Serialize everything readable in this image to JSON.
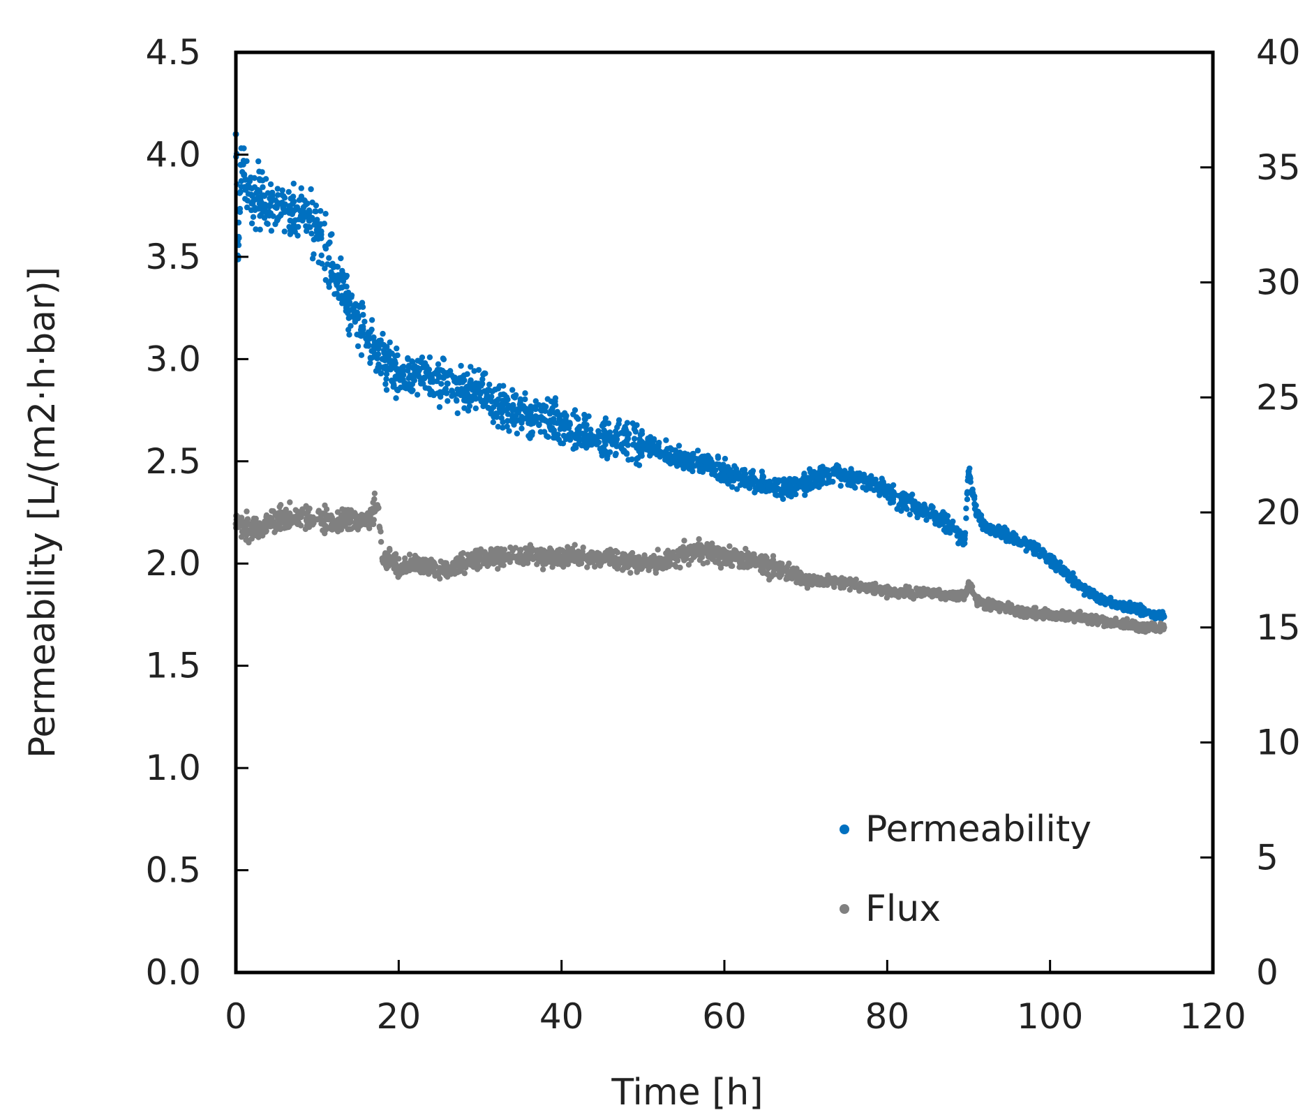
{
  "chart_data": {
    "type": "scatter",
    "xlabel": "Time [h]",
    "ylabel": "Permeability [L/(m2·h·bar)]",
    "y2label": "",
    "xlim": [
      0,
      120
    ],
    "ylim": [
      0,
      4.5
    ],
    "y2lim": [
      0,
      40
    ],
    "x_ticks": [
      "0",
      "20",
      "40",
      "60",
      "80",
      "100",
      "120"
    ],
    "y_ticks": [
      "0.0",
      "0.5",
      "1.0",
      "1.5",
      "2.0",
      "2.5",
      "3.0",
      "3.5",
      "4.0",
      "4.5"
    ],
    "y2_ticks": [
      "0",
      "5",
      "10",
      "15",
      "20",
      "25",
      "30",
      "35",
      "40"
    ],
    "legend_position": "bottom-right",
    "grid": false,
    "series": [
      {
        "name": "Permeability",
        "axis": "left",
        "color": "#0070C0",
        "points": [
          [
            0,
            4.1
          ],
          [
            0.3,
            3.5
          ],
          [
            0.6,
            3.95
          ],
          [
            1,
            3.9
          ],
          [
            1.5,
            3.85
          ],
          [
            2,
            3.8
          ],
          [
            3,
            3.78
          ],
          [
            4,
            3.75
          ],
          [
            5,
            3.74
          ],
          [
            6,
            3.72
          ],
          [
            7,
            3.72
          ],
          [
            8,
            3.7
          ],
          [
            9,
            3.68
          ],
          [
            10,
            3.62
          ],
          [
            11,
            3.55
          ],
          [
            12,
            3.45
          ],
          [
            13,
            3.35
          ],
          [
            14,
            3.27
          ],
          [
            15,
            3.2
          ],
          [
            16,
            3.1
          ],
          [
            17,
            3.05
          ],
          [
            18,
            3.0
          ],
          [
            18.5,
            2.95
          ],
          [
            19,
            2.95
          ],
          [
            20,
            2.93
          ],
          [
            22,
            2.92
          ],
          [
            24,
            2.9
          ],
          [
            26,
            2.88
          ],
          [
            28,
            2.85
          ],
          [
            30,
            2.83
          ],
          [
            32,
            2.78
          ],
          [
            34,
            2.75
          ],
          [
            36,
            2.72
          ],
          [
            38,
            2.7
          ],
          [
            40,
            2.67
          ],
          [
            42,
            2.64
          ],
          [
            44,
            2.62
          ],
          [
            46,
            2.6
          ],
          [
            48,
            2.6
          ],
          [
            50,
            2.58
          ],
          [
            52,
            2.55
          ],
          [
            54,
            2.52
          ],
          [
            56,
            2.5
          ],
          [
            58,
            2.48
          ],
          [
            60,
            2.45
          ],
          [
            62,
            2.42
          ],
          [
            64,
            2.4
          ],
          [
            66,
            2.38
          ],
          [
            68,
            2.36
          ],
          [
            70,
            2.4
          ],
          [
            72,
            2.42
          ],
          [
            74,
            2.43
          ],
          [
            76,
            2.42
          ],
          [
            78,
            2.4
          ],
          [
            80,
            2.35
          ],
          [
            82,
            2.3
          ],
          [
            84,
            2.27
          ],
          [
            86,
            2.23
          ],
          [
            88,
            2.18
          ],
          [
            89.5,
            2.12
          ],
          [
            90,
            2.45
          ],
          [
            91,
            2.25
          ],
          [
            92,
            2.18
          ],
          [
            94,
            2.15
          ],
          [
            96,
            2.12
          ],
          [
            98,
            2.08
          ],
          [
            100,
            2.02
          ],
          [
            102,
            1.95
          ],
          [
            104,
            1.88
          ],
          [
            106,
            1.83
          ],
          [
            108,
            1.8
          ],
          [
            110,
            1.78
          ],
          [
            112,
            1.76
          ],
          [
            114,
            1.74
          ]
        ]
      },
      {
        "name": "Flux",
        "axis": "right",
        "color": "#808080",
        "points": [
          [
            0,
            19.5
          ],
          [
            2,
            19.3
          ],
          [
            4,
            19.5
          ],
          [
            6,
            19.7
          ],
          [
            8,
            19.8
          ],
          [
            10,
            19.7
          ],
          [
            12,
            19.6
          ],
          [
            14,
            19.6
          ],
          [
            16,
            19.7
          ],
          [
            17.5,
            20.2
          ],
          [
            18,
            18.0
          ],
          [
            19,
            18.0
          ],
          [
            20,
            17.6
          ],
          [
            22,
            17.8
          ],
          [
            24,
            17.6
          ],
          [
            26,
            17.5
          ],
          [
            28,
            17.8
          ],
          [
            30,
            18.0
          ],
          [
            32,
            18.0
          ],
          [
            34,
            18.1
          ],
          [
            36,
            18.2
          ],
          [
            38,
            18.0
          ],
          [
            40,
            18.0
          ],
          [
            42,
            18.1
          ],
          [
            44,
            18.1
          ],
          [
            46,
            18.0
          ],
          [
            48,
            17.9
          ],
          [
            50,
            17.8
          ],
          [
            52,
            17.9
          ],
          [
            54,
            18.0
          ],
          [
            56,
            18.3
          ],
          [
            58,
            18.3
          ],
          [
            60,
            18.1
          ],
          [
            62,
            18.0
          ],
          [
            64,
            17.8
          ],
          [
            66,
            17.6
          ],
          [
            68,
            17.4
          ],
          [
            70,
            17.0
          ],
          [
            72,
            17.0
          ],
          [
            74,
            17.0
          ],
          [
            76,
            16.9
          ],
          [
            78,
            16.7
          ],
          [
            80,
            16.6
          ],
          [
            82,
            16.5
          ],
          [
            84,
            16.5
          ],
          [
            86,
            16.5
          ],
          [
            88,
            16.4
          ],
          [
            89.5,
            16.4
          ],
          [
            90,
            16.9
          ],
          [
            91,
            16.2
          ],
          [
            92,
            16.0
          ],
          [
            94,
            15.9
          ],
          [
            96,
            15.7
          ],
          [
            98,
            15.6
          ],
          [
            100,
            15.6
          ],
          [
            102,
            15.5
          ],
          [
            104,
            15.4
          ],
          [
            106,
            15.3
          ],
          [
            108,
            15.2
          ],
          [
            110,
            15.1
          ],
          [
            112,
            15.0
          ],
          [
            114,
            15.0
          ]
        ]
      }
    ]
  }
}
